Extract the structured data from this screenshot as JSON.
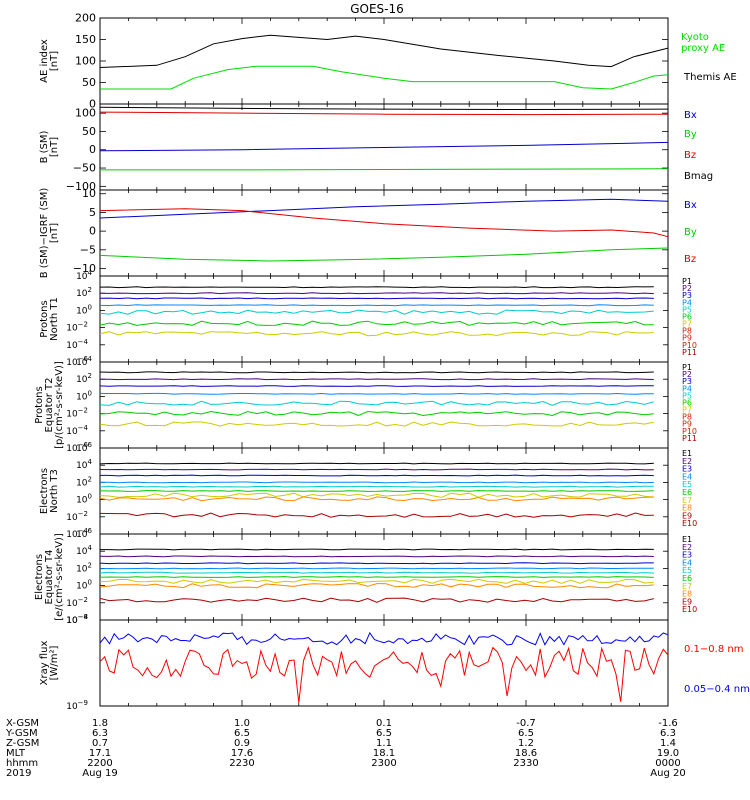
{
  "title": "GOES-16",
  "footer": {
    "row_labels": [
      "X-GSM",
      "Y-GSM",
      "Z-GSM",
      "MLT",
      "hhmm",
      "2019"
    ],
    "columns": [
      [
        "1.8",
        "6.3",
        "0.7",
        "17.1",
        "2200",
        "Aug 19"
      ],
      [
        "1.0",
        "6.5",
        "0.9",
        "17.6",
        "2230",
        ""
      ],
      [
        "0.1",
        "6.5",
        "1.1",
        "18.1",
        "2300",
        ""
      ],
      [
        "-0.7",
        "6.5",
        "1.2",
        "18.6",
        "2330",
        ""
      ],
      [
        "-1.6",
        "6.3",
        "1.4",
        "19.0",
        "0000",
        "Aug 20"
      ]
    ]
  },
  "chart_data": [
    {
      "id": "ae",
      "type": "line",
      "ylabel": [
        "AE index",
        "[nT]"
      ],
      "ylim": [
        0,
        200
      ],
      "yticks": [
        0,
        50,
        100,
        150,
        200
      ],
      "ytick_labels": [
        "0",
        "50",
        "100",
        "150",
        "200"
      ],
      "x": "hours since 2019-08-19 22:00 (0..2)",
      "series": [
        {
          "name": "Kyoto proxy AE",
          "color": "#00dd00",
          "points": [
            [
              0,
              35
            ],
            [
              0.25,
              35
            ],
            [
              0.33,
              60
            ],
            [
              0.45,
              80
            ],
            [
              0.55,
              88
            ],
            [
              0.75,
              88
            ],
            [
              0.85,
              75
            ],
            [
              1.0,
              60
            ],
            [
              1.1,
              52
            ],
            [
              1.6,
              52
            ],
            [
              1.7,
              38
            ],
            [
              1.8,
              35
            ],
            [
              1.88,
              50
            ],
            [
              1.95,
              65
            ],
            [
              2.0,
              68
            ]
          ]
        },
        {
          "name": "Themis AE",
          "color": "#000000",
          "points": [
            [
              0,
              85
            ],
            [
              0.2,
              90
            ],
            [
              0.3,
              110
            ],
            [
              0.4,
              140
            ],
            [
              0.5,
              152
            ],
            [
              0.6,
              160
            ],
            [
              0.8,
              150
            ],
            [
              0.9,
              158
            ],
            [
              1.0,
              150
            ],
            [
              1.2,
              128
            ],
            [
              1.4,
              113
            ],
            [
              1.6,
              100
            ],
            [
              1.72,
              90
            ],
            [
              1.8,
              87
            ],
            [
              1.88,
              110
            ],
            [
              2.0,
              130
            ]
          ]
        }
      ]
    },
    {
      "id": "bsm",
      "type": "line",
      "ylabel": [
        "B (SM)",
        "[nT]"
      ],
      "ylim": [
        -110,
        125
      ],
      "yticks": [
        100,
        50,
        0,
        -50,
        -100
      ],
      "ytick_labels": [
        "100",
        "50",
        "0",
        "−50",
        "−100"
      ],
      "series": [
        {
          "name": "Bx",
          "color": "#0000cc",
          "points": [
            [
              0,
              -3
            ],
            [
              0.5,
              0
            ],
            [
              1.0,
              6
            ],
            [
              1.5,
              12
            ],
            [
              2.0,
              20
            ]
          ]
        },
        {
          "name": "By",
          "color": "#00cc00",
          "points": [
            [
              0,
              -55
            ],
            [
              0.5,
              -55
            ],
            [
              1.0,
              -54
            ],
            [
              1.5,
              -53
            ],
            [
              2.0,
              -52
            ]
          ]
        },
        {
          "name": "Bz",
          "color": "#dd0000",
          "points": [
            [
              0,
              103
            ],
            [
              0.5,
              100
            ],
            [
              1.0,
              97
            ],
            [
              1.5,
              96
            ],
            [
              2.0,
              97
            ]
          ]
        },
        {
          "name": "Bmag",
          "color": "#000000",
          "points": [
            [
              0,
              116
            ],
            [
              0.5,
              113
            ],
            [
              1.0,
              111
            ],
            [
              1.5,
              110
            ],
            [
              2.0,
              111
            ]
          ]
        }
      ]
    },
    {
      "id": "bigrf",
      "type": "line",
      "ylabel": [
        "B (SM)−IGRF (SM)",
        "[nT]"
      ],
      "ylim": [
        -12,
        11
      ],
      "yticks": [
        10,
        5,
        0,
        -5,
        -10
      ],
      "ytick_labels": [
        "10",
        "5",
        "0",
        "−5",
        "−10"
      ],
      "series": [
        {
          "name": "Bx",
          "color": "#0000cc",
          "points": [
            [
              0,
              3.5
            ],
            [
              0.3,
              4.5
            ],
            [
              0.6,
              5.5
            ],
            [
              0.9,
              6.5
            ],
            [
              1.2,
              7.2
            ],
            [
              1.5,
              8
            ],
            [
              1.8,
              8.5
            ],
            [
              2.0,
              8
            ]
          ]
        },
        {
          "name": "By",
          "color": "#00cc00",
          "points": [
            [
              0,
              -6.5
            ],
            [
              0.3,
              -7.5
            ],
            [
              0.6,
              -8
            ],
            [
              0.9,
              -7.6
            ],
            [
              1.2,
              -7
            ],
            [
              1.5,
              -6.2
            ],
            [
              1.8,
              -5
            ],
            [
              2.0,
              -4.5
            ]
          ]
        },
        {
          "name": "Bz",
          "color": "#dd0000",
          "points": [
            [
              0,
              5.5
            ],
            [
              0.3,
              6
            ],
            [
              0.5,
              5.5
            ],
            [
              0.75,
              3.5
            ],
            [
              1.0,
              2
            ],
            [
              1.3,
              0.8
            ],
            [
              1.6,
              0
            ],
            [
              1.8,
              0.3
            ],
            [
              1.95,
              -0.5
            ],
            [
              2.0,
              -1.5
            ]
          ]
        }
      ]
    },
    {
      "id": "protons_t1",
      "type": "line",
      "ylabel": [
        "Protons",
        "North T1"
      ],
      "ylog": true,
      "ylim": [
        -6,
        4
      ],
      "ytick_exps": [
        4,
        2,
        0,
        -2,
        -4,
        -6
      ],
      "channels": [
        "P1",
        "P2",
        "P3",
        "P4",
        "P5",
        "P6",
        "P7",
        "P8",
        "P9",
        "P10",
        "P11"
      ],
      "series": [
        {
          "name": "P1",
          "color": "#000000",
          "level": 2.7
        },
        {
          "name": "P2",
          "color": "#4b0082",
          "level": 2.0
        },
        {
          "name": "P3",
          "color": "#0000cc",
          "level": 1.4
        },
        {
          "name": "P4",
          "color": "#0088ff",
          "level": 0.6
        },
        {
          "name": "P5",
          "color": "#00cccc",
          "level": -0.2
        },
        {
          "name": "P6",
          "color": "#00cc00",
          "level": -1.5
        },
        {
          "name": "P7",
          "color": "#cccc00",
          "level": -2.7
        }
      ]
    },
    {
      "id": "protons_t2",
      "type": "line",
      "ylabel": [
        "Protons",
        "Equator T2",
        "[p/(cm²-s-sr-keV)]"
      ],
      "ylog": true,
      "ylim": [
        -6,
        4
      ],
      "ytick_exps": [
        4,
        2,
        0,
        -2,
        -4,
        -6
      ],
      "channels": [
        "P1",
        "P2",
        "P3",
        "P4",
        "P5",
        "P6",
        "P7",
        "P8",
        "P9",
        "P10",
        "P11"
      ],
      "series": [
        {
          "name": "P1",
          "color": "#000000",
          "level": 2.8
        },
        {
          "name": "P2",
          "color": "#4b0082",
          "level": 2.0
        },
        {
          "name": "P3",
          "color": "#0000cc",
          "level": 1.2
        },
        {
          "name": "P4",
          "color": "#0088ff",
          "level": 0.3
        },
        {
          "name": "P5",
          "color": "#00cccc",
          "level": -0.8
        },
        {
          "name": "P6",
          "color": "#00cc00",
          "level": -2.0
        },
        {
          "name": "P7",
          "color": "#cccc00",
          "level": -3.2
        }
      ]
    },
    {
      "id": "electrons_t3",
      "type": "line",
      "ylabel": [
        "Electrons",
        "North T3"
      ],
      "ylog": true,
      "ylim": [
        -4,
        6
      ],
      "ytick_exps": [
        6,
        4,
        2,
        0,
        -2,
        -4
      ],
      "channels": [
        "E1",
        "E2",
        "E3",
        "E4",
        "E5",
        "E6",
        "E7",
        "E8",
        "E9",
        "E10"
      ],
      "series": [
        {
          "name": "E1",
          "color": "#000000",
          "level": 4.2
        },
        {
          "name": "E2",
          "color": "#4b0082",
          "level": 3.5
        },
        {
          "name": "E3",
          "color": "#0000cc",
          "level": 2.8
        },
        {
          "name": "E4",
          "color": "#0088ff",
          "level": 2.0
        },
        {
          "name": "E5",
          "color": "#00cccc",
          "level": 1.5
        },
        {
          "name": "E6",
          "color": "#00cc00",
          "level": 1.0
        },
        {
          "name": "E7",
          "color": "#cccc00",
          "level": 0.5
        },
        {
          "name": "E8",
          "color": "#ff8800",
          "level": 0.1
        },
        {
          "name": "E9",
          "color": "#aa0000",
          "level": -1.8
        }
      ]
    },
    {
      "id": "electrons_t4",
      "type": "line",
      "ylabel": [
        "Electrons",
        "Equator T4",
        "[e/(cm²-s-sr-keV)]"
      ],
      "ylog": true,
      "ylim": [
        -4,
        6
      ],
      "ytick_exps": [
        6,
        4,
        2,
        0,
        -2,
        -4
      ],
      "channels": [
        "E1",
        "E2",
        "E3",
        "E4",
        "E5",
        "E6",
        "E7",
        "E8",
        "E9",
        "E10"
      ],
      "series": [
        {
          "name": "E1",
          "color": "#000000",
          "level": 4.2
        },
        {
          "name": "E2",
          "color": "#4b0082",
          "level": 3.4
        },
        {
          "name": "E3",
          "color": "#0000cc",
          "level": 2.6
        },
        {
          "name": "E4",
          "color": "#0088ff",
          "level": 2.0
        },
        {
          "name": "E5",
          "color": "#00cccc",
          "level": 1.5
        },
        {
          "name": "E6",
          "color": "#00cc00",
          "level": 1.0
        },
        {
          "name": "E7",
          "color": "#cccc00",
          "level": 0.5
        },
        {
          "name": "E8",
          "color": "#ff8800",
          "level": 0.0
        },
        {
          "name": "E9",
          "color": "#aa0000",
          "level": -1.7
        }
      ]
    },
    {
      "id": "xray",
      "type": "line",
      "ylabel": [
        "Xray flux",
        "[W/m²]"
      ],
      "ylog": true,
      "ylim": [
        -9,
        -8
      ],
      "ytick_exps": [
        -8,
        -9
      ],
      "series": [
        {
          "name": "0.1−0.8 nm",
          "color": "#ff0000",
          "level": -8.5
        },
        {
          "name": "0.05−0.4 nm",
          "color": "#0000ff",
          "level": -8.22
        }
      ]
    }
  ]
}
